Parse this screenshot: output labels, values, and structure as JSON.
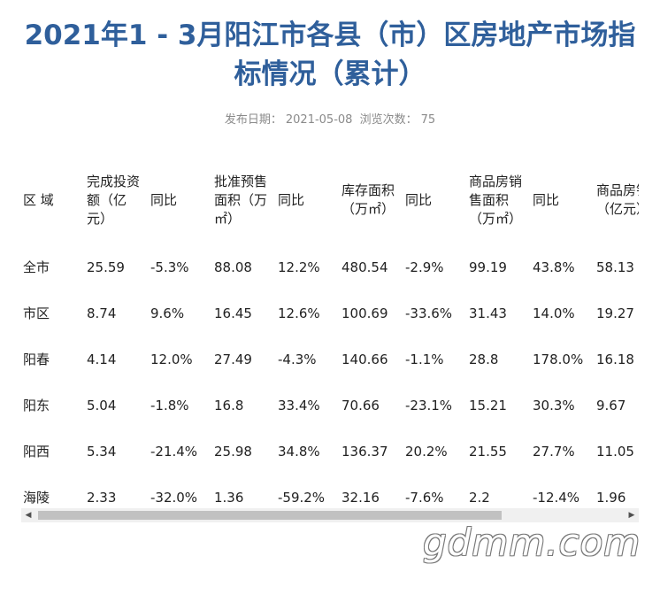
{
  "title": "2021年1 - 3月阳江市各县（市）区房地产市场指标情况（累计）",
  "meta": {
    "publish_label": "发布日期：",
    "publish_date": "2021-05-08",
    "views_label": "浏览次数：",
    "views": "75"
  },
  "table": {
    "headers": [
      "区 域",
      "完成投资额（亿元）",
      "同比",
      "批准预售面积（万㎡）",
      "同比",
      "库存面积（万㎡）",
      "同比",
      "商品房销售面积（万㎡）",
      "同比",
      "商品房销售额（亿元）"
    ],
    "rows": [
      [
        "全市",
        "25.59",
        "-5.3%",
        "88.08",
        "12.2%",
        "480.54",
        "-2.9%",
        "99.19",
        "43.8%",
        "58.13"
      ],
      [
        "市区",
        "8.74",
        "9.6%",
        "16.45",
        "12.6%",
        "100.69",
        "-33.6%",
        "31.43",
        "14.0%",
        "19.27"
      ],
      [
        "阳春",
        "4.14",
        "12.0%",
        "27.49",
        "-4.3%",
        "140.66",
        "-1.1%",
        "28.8",
        "178.0%",
        "16.18"
      ],
      [
        "阳东",
        "5.04",
        "-1.8%",
        "16.8",
        "33.4%",
        "70.66",
        "-23.1%",
        "15.21",
        "30.3%",
        "9.67"
      ],
      [
        "阳西",
        "5.34",
        "-21.4%",
        "25.98",
        "34.8%",
        "136.37",
        "20.2%",
        "21.55",
        "27.7%",
        "11.05"
      ],
      [
        "海陵",
        "2.33",
        "-32.0%",
        "1.36",
        "-59.2%",
        "32.16",
        "-7.6%",
        "2.2",
        "-12.4%",
        "1.96"
      ]
    ]
  },
  "watermark": "gdmm.com"
}
